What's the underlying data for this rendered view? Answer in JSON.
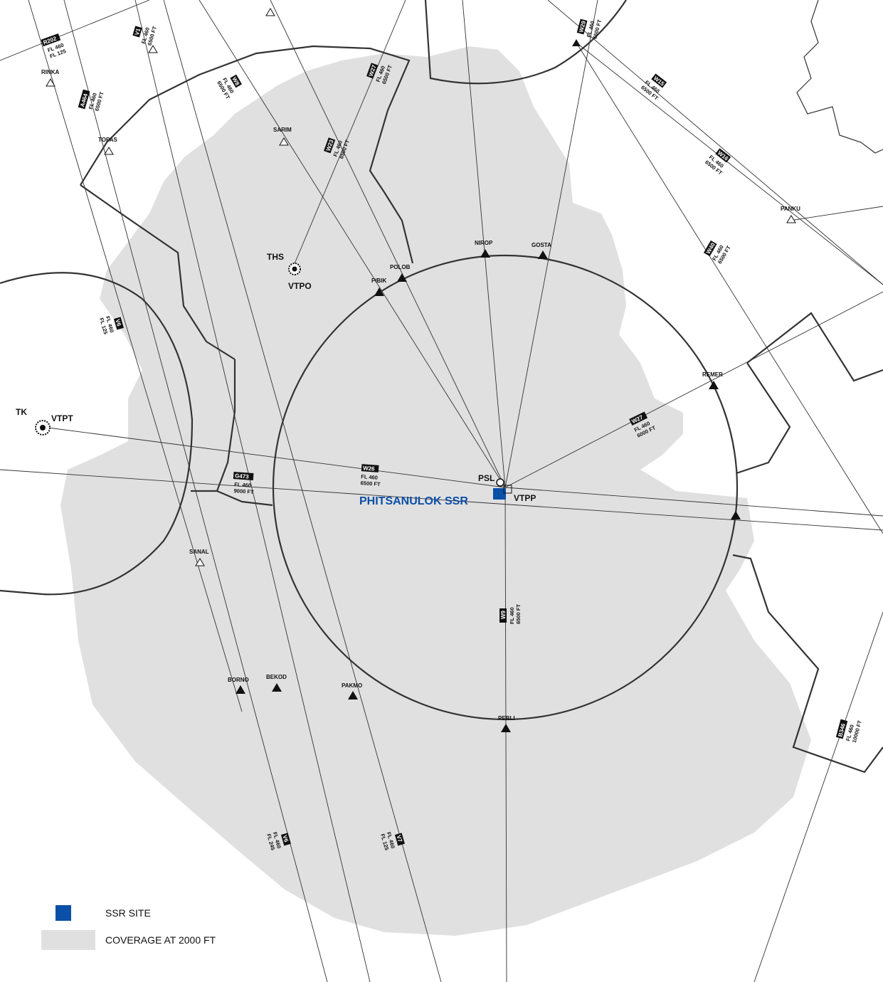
{
  "colors": {
    "coverage": "#e0e0e0",
    "ssr": "#0a4fa8",
    "line": "#333333"
  },
  "ssr_site": {
    "name": "PHITSANULOK SSR",
    "ident": "PSL",
    "icao": "VTPP"
  },
  "airports": [
    {
      "name": "THS",
      "icao": "VTPO"
    },
    {
      "name": "TK",
      "icao": "VTPT"
    }
  ],
  "waypoints": [
    "RINKA",
    "TOPAS",
    "SARIM",
    "POLOB",
    "PIBIK",
    "NIROP",
    "GOSTA",
    "PANKU",
    "REMER",
    "SANAL",
    "BORNO",
    "BEKOD",
    "PAKMO",
    "PEBLI"
  ],
  "routes": [
    {
      "id": "R202",
      "alt1": "FL 460",
      "alt2": "FL 125"
    },
    {
      "id": "V1",
      "alt1": "FL 460",
      "alt2": "6500 FT"
    },
    {
      "id": "A464",
      "alt1": "FL 460",
      "alt2": "6500 FT"
    },
    {
      "id": "W8",
      "alt1": "FL 460",
      "alt2": "6500 FT"
    },
    {
      "id": "W27",
      "alt1": "FL 460",
      "alt2": "6500 FT"
    },
    {
      "id": "W23",
      "alt1": "FL 460",
      "alt2": "6500 FT"
    },
    {
      "id": "W29",
      "alt1": "FL 460",
      "alt2": "6500 FT"
    },
    {
      "id": "W15",
      "alt1": "FL 460",
      "alt2": "6500 FT"
    },
    {
      "id": "W16",
      "alt1": "FL 460",
      "alt2": "6500 FT"
    },
    {
      "id": "W40",
      "alt1": "FL 460",
      "alt2": "6500 FT"
    },
    {
      "id": "V6",
      "alt1": "FL 460",
      "alt2": "FL 125"
    },
    {
      "id": "W26",
      "alt1": "FL 460",
      "alt2": "6500 FT"
    },
    {
      "id": "G473",
      "alt1": "FL 460",
      "alt2": "9000 FT"
    },
    {
      "id": "W27",
      "alt1": "FL 460",
      "alt2": "6000 FT"
    },
    {
      "id": "W9",
      "alt1": "FL 460",
      "alt2": "6500 FT"
    },
    {
      "id": "V6",
      "alt1": "FL 460",
      "alt2": "FL 245"
    },
    {
      "id": "V7",
      "alt1": "FL 460",
      "alt2": "FL 125"
    },
    {
      "id": "B346",
      "alt1": "FL 460",
      "alt2": "10000 FT"
    }
  ],
  "legend": {
    "ssr_site": "SSR SITE",
    "coverage": "COVERAGE AT 2000 FT"
  }
}
